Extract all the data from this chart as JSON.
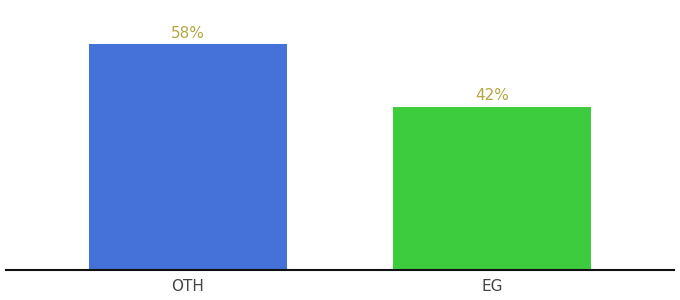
{
  "categories": [
    "OTH",
    "EG"
  ],
  "values": [
    58,
    42
  ],
  "bar_colors": [
    "#4472d9",
    "#3dcc3d"
  ],
  "label_texts": [
    "58%",
    "42%"
  ],
  "label_color": "#b5a642",
  "ylim": [
    0,
    68
  ],
  "background_color": "#ffffff",
  "bar_width": 0.65,
  "tick_fontsize": 11,
  "label_fontsize": 11,
  "spine_color": "#111111"
}
